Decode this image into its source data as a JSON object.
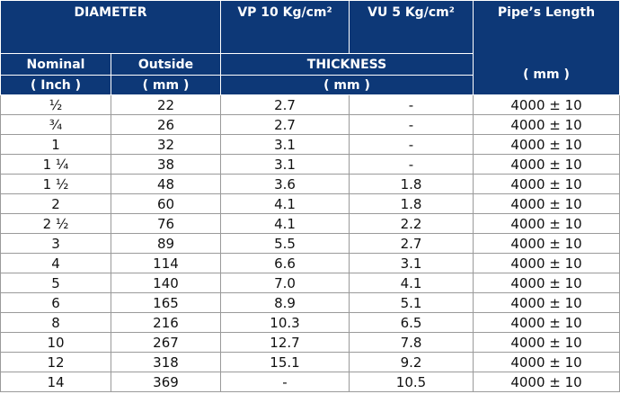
{
  "header": {
    "diameter": "DIAMETER",
    "vp": "VP 10 Kg/cm²",
    "vu": "VU 5 Kg/cm²",
    "length": "Pipe’s Length",
    "nominal": "Nominal",
    "outside": "Outside",
    "thickness": "THICKNESS",
    "inch": "( Inch )",
    "mm1": "( mm )",
    "mm2": "( mm )",
    "mm3": "( mm )"
  },
  "rows": [
    {
      "nominal": "½",
      "outside": "22",
      "vp": "2.7",
      "vu": "-",
      "length": "4000 ± 10"
    },
    {
      "nominal": "¾",
      "outside": "26",
      "vp": "2.7",
      "vu": "-",
      "length": "4000 ± 10"
    },
    {
      "nominal": "1",
      "outside": "32",
      "vp": "3.1",
      "vu": "-",
      "length": "4000 ± 10"
    },
    {
      "nominal": "1 ¼",
      "outside": "38",
      "vp": "3.1",
      "vu": "-",
      "length": "4000 ± 10"
    },
    {
      "nominal": "1 ½",
      "outside": "48",
      "vp": "3.6",
      "vu": "1.8",
      "length": "4000 ± 10"
    },
    {
      "nominal": "2",
      "outside": "60",
      "vp": "4.1",
      "vu": "1.8",
      "length": "4000 ± 10"
    },
    {
      "nominal": "2 ½",
      "outside": "76",
      "vp": "4.1",
      "vu": "2.2",
      "length": "4000 ± 10"
    },
    {
      "nominal": "3",
      "outside": "89",
      "vp": "5.5",
      "vu": "2.7",
      "length": "4000 ± 10"
    },
    {
      "nominal": "4",
      "outside": "114",
      "vp": "6.6",
      "vu": "3.1",
      "length": "4000 ± 10"
    },
    {
      "nominal": "5",
      "outside": "140",
      "vp": "7.0",
      "vu": "4.1",
      "length": "4000 ± 10"
    },
    {
      "nominal": "6",
      "outside": "165",
      "vp": "8.9",
      "vu": "5.1",
      "length": "4000 ± 10"
    },
    {
      "nominal": "8",
      "outside": "216",
      "vp": "10.3",
      "vu": "6.5",
      "length": "4000 ± 10"
    },
    {
      "nominal": "10",
      "outside": "267",
      "vp": "12.7",
      "vu": "7.8",
      "length": "4000 ± 10"
    },
    {
      "nominal": "12",
      "outside": "318",
      "vp": "15.1",
      "vu": "9.2",
      "length": "4000 ± 10"
    },
    {
      "nominal": "14",
      "outside": "369",
      "vp": "-",
      "vu": "10.5",
      "length": "4000 ± 10"
    }
  ],
  "colors": {
    "header_bg": "#0d3877",
    "header_text": "#ffffff",
    "grid": "#b5b5b5"
  }
}
